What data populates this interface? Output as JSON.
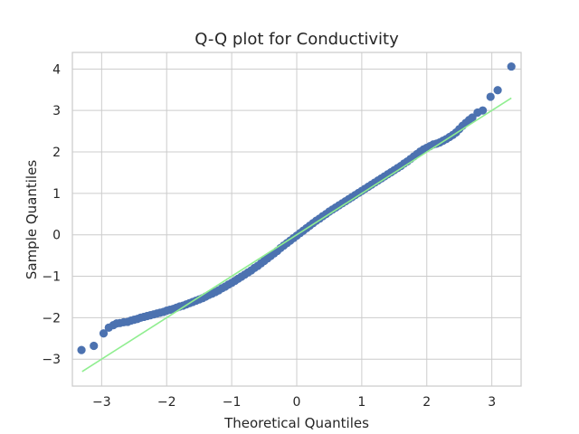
{
  "chart_data": {
    "type": "scatter",
    "title": "Q-Q plot for Conductivity",
    "xlabel": "Theoretical Quantiles",
    "ylabel": "Sample Quantiles",
    "xlim": [
      -3.45,
      3.45
    ],
    "ylim": [
      -3.65,
      4.4
    ],
    "x_ticks": [
      -3,
      -2,
      -1,
      0,
      1,
      2,
      3
    ],
    "y_ticks": [
      -3,
      -2,
      -1,
      0,
      1,
      2,
      3,
      4
    ],
    "x_tick_labels": [
      "−3",
      "−2",
      "−1",
      "0",
      "1",
      "2",
      "3"
    ],
    "y_tick_labels": [
      "−3",
      "−2",
      "−1",
      "0",
      "1",
      "2",
      "3",
      "4"
    ],
    "grid": true,
    "colors": {
      "points": "#4c72b0",
      "reference_line": "#90ee90",
      "grid": "#cccccc",
      "spine": "#cccccc",
      "text": "#262626"
    },
    "reference_line": {
      "x": [
        -3.3,
        3.3
      ],
      "y": [
        -3.3,
        3.3
      ]
    },
    "series": [
      {
        "points": [
          [
            -3.31,
            -2.78
          ],
          [
            -3.12,
            -2.68
          ],
          [
            -2.97,
            -2.38
          ],
          [
            -2.89,
            -2.24
          ],
          [
            -2.82,
            -2.18
          ],
          [
            -2.77,
            -2.14
          ],
          [
            -2.72,
            -2.13
          ],
          [
            -2.66,
            -2.11
          ],
          [
            -2.6,
            -2.1
          ],
          [
            -2.55,
            -2.07
          ],
          [
            -2.5,
            -2.05
          ],
          [
            -2.45,
            -2.03
          ],
          [
            -2.4,
            -2.0
          ],
          [
            -2.35,
            -1.98
          ],
          [
            -2.3,
            -1.96
          ],
          [
            -2.25,
            -1.94
          ],
          [
            -2.2,
            -1.92
          ],
          [
            -2.15,
            -1.9
          ],
          [
            -2.1,
            -1.88
          ],
          [
            -2.05,
            -1.86
          ],
          [
            -2.0,
            -1.83
          ],
          [
            -1.95,
            -1.81
          ],
          [
            -1.9,
            -1.79
          ],
          [
            -1.85,
            -1.76
          ],
          [
            -1.8,
            -1.73
          ],
          [
            -1.75,
            -1.71
          ],
          [
            -1.7,
            -1.68
          ],
          [
            -1.65,
            -1.65
          ],
          [
            -1.6,
            -1.62
          ],
          [
            -1.55,
            -1.59
          ],
          [
            -1.5,
            -1.56
          ],
          [
            -1.45,
            -1.53
          ],
          [
            -1.4,
            -1.49
          ],
          [
            -1.35,
            -1.45
          ],
          [
            -1.3,
            -1.42
          ],
          [
            -1.25,
            -1.38
          ],
          [
            -1.2,
            -1.34
          ],
          [
            -1.15,
            -1.29
          ],
          [
            -1.1,
            -1.25
          ],
          [
            -1.05,
            -1.2
          ],
          [
            -1.0,
            -1.16
          ],
          [
            -0.95,
            -1.11
          ],
          [
            -0.9,
            -1.06
          ],
          [
            -0.85,
            -1.01
          ],
          [
            -0.8,
            -0.96
          ],
          [
            -0.75,
            -0.91
          ],
          [
            -0.7,
            -0.86
          ],
          [
            -0.65,
            -0.8
          ],
          [
            -0.6,
            -0.75
          ],
          [
            -0.55,
            -0.69
          ],
          [
            -0.5,
            -0.63
          ],
          [
            -0.45,
            -0.57
          ],
          [
            -0.4,
            -0.51
          ],
          [
            -0.35,
            -0.45
          ],
          [
            -0.3,
            -0.39
          ],
          [
            -0.25,
            -0.32
          ],
          [
            -0.2,
            -0.26
          ],
          [
            -0.15,
            -0.2
          ],
          [
            -0.1,
            -0.14
          ],
          [
            -0.05,
            -0.08
          ],
          [
            0.0,
            -0.02
          ],
          [
            0.05,
            0.04
          ],
          [
            0.1,
            0.1
          ],
          [
            0.15,
            0.16
          ],
          [
            0.2,
            0.22
          ],
          [
            0.25,
            0.28
          ],
          [
            0.3,
            0.34
          ],
          [
            0.35,
            0.39
          ],
          [
            0.4,
            0.45
          ],
          [
            0.45,
            0.5
          ],
          [
            0.5,
            0.56
          ],
          [
            0.55,
            0.61
          ],
          [
            0.6,
            0.66
          ],
          [
            0.65,
            0.71
          ],
          [
            0.7,
            0.76
          ],
          [
            0.75,
            0.81
          ],
          [
            0.8,
            0.86
          ],
          [
            0.85,
            0.91
          ],
          [
            0.9,
            0.96
          ],
          [
            0.95,
            1.01
          ],
          [
            1.0,
            1.06
          ],
          [
            1.05,
            1.11
          ],
          [
            1.1,
            1.16
          ],
          [
            1.15,
            1.21
          ],
          [
            1.2,
            1.26
          ],
          [
            1.25,
            1.31
          ],
          [
            1.3,
            1.36
          ],
          [
            1.35,
            1.41
          ],
          [
            1.4,
            1.46
          ],
          [
            1.45,
            1.51
          ],
          [
            1.5,
            1.56
          ],
          [
            1.55,
            1.61
          ],
          [
            1.6,
            1.66
          ],
          [
            1.65,
            1.72
          ],
          [
            1.7,
            1.77
          ],
          [
            1.75,
            1.83
          ],
          [
            1.8,
            1.89
          ],
          [
            1.85,
            1.95
          ],
          [
            1.9,
            2.01
          ],
          [
            1.95,
            2.06
          ],
          [
            2.0,
            2.1
          ],
          [
            2.05,
            2.14
          ],
          [
            2.1,
            2.18
          ],
          [
            2.15,
            2.2
          ],
          [
            2.2,
            2.23
          ],
          [
            2.25,
            2.27
          ],
          [
            2.3,
            2.31
          ],
          [
            2.35,
            2.36
          ],
          [
            2.4,
            2.41
          ],
          [
            2.45,
            2.47
          ],
          [
            2.5,
            2.55
          ],
          [
            2.55,
            2.63
          ],
          [
            2.6,
            2.7
          ],
          [
            2.65,
            2.77
          ],
          [
            2.7,
            2.83
          ],
          [
            2.78,
            2.95
          ],
          [
            2.86,
            3.0
          ],
          [
            2.98,
            3.33
          ],
          [
            3.09,
            3.49
          ],
          [
            3.3,
            4.06
          ]
        ]
      }
    ]
  }
}
